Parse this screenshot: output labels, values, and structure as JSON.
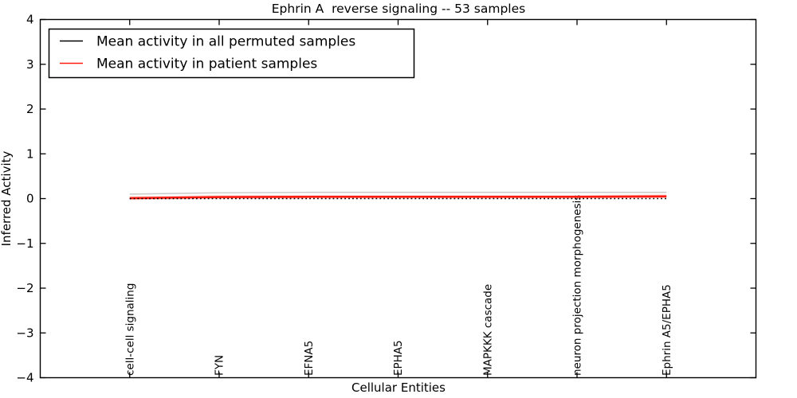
{
  "figure": {
    "background_color": "#ffffff",
    "frame_color": "#000000"
  },
  "chart_data": {
    "type": "line",
    "title": "Ephrin A  reverse signaling -- 53 samples",
    "xlabel": "Cellular Entities",
    "ylabel": "Inferred Activity",
    "ylim": [
      -4,
      4
    ],
    "yticks": [
      4,
      3,
      2,
      1,
      0,
      -1,
      -2,
      -3,
      -4
    ],
    "grid": false,
    "legend_position": "upper left",
    "categories": [
      "cell-cell signaling",
      "FYN",
      "EFNA5",
      "EPHA5",
      "MAPKKK cascade",
      "neuron projection morphogenesis",
      "Ephrin A5/EPHA5"
    ],
    "series": [
      {
        "name": "Mean activity in all permuted samples",
        "color": "#000000",
        "line_style": "dotted",
        "values": [
          0.0,
          0.0,
          0.0,
          0.0,
          0.0,
          0.0,
          0.0
        ]
      },
      {
        "name": "Mean activity in patient samples",
        "color": "#ff1a10",
        "line_style": "solid",
        "values": [
          0.01,
          0.035,
          0.04,
          0.04,
          0.04,
          0.04,
          0.05
        ]
      }
    ],
    "faint_upper_line": {
      "color": "#c9c9c9",
      "values": [
        0.1,
        0.13,
        0.14,
        0.14,
        0.14,
        0.14,
        0.14
      ]
    }
  }
}
